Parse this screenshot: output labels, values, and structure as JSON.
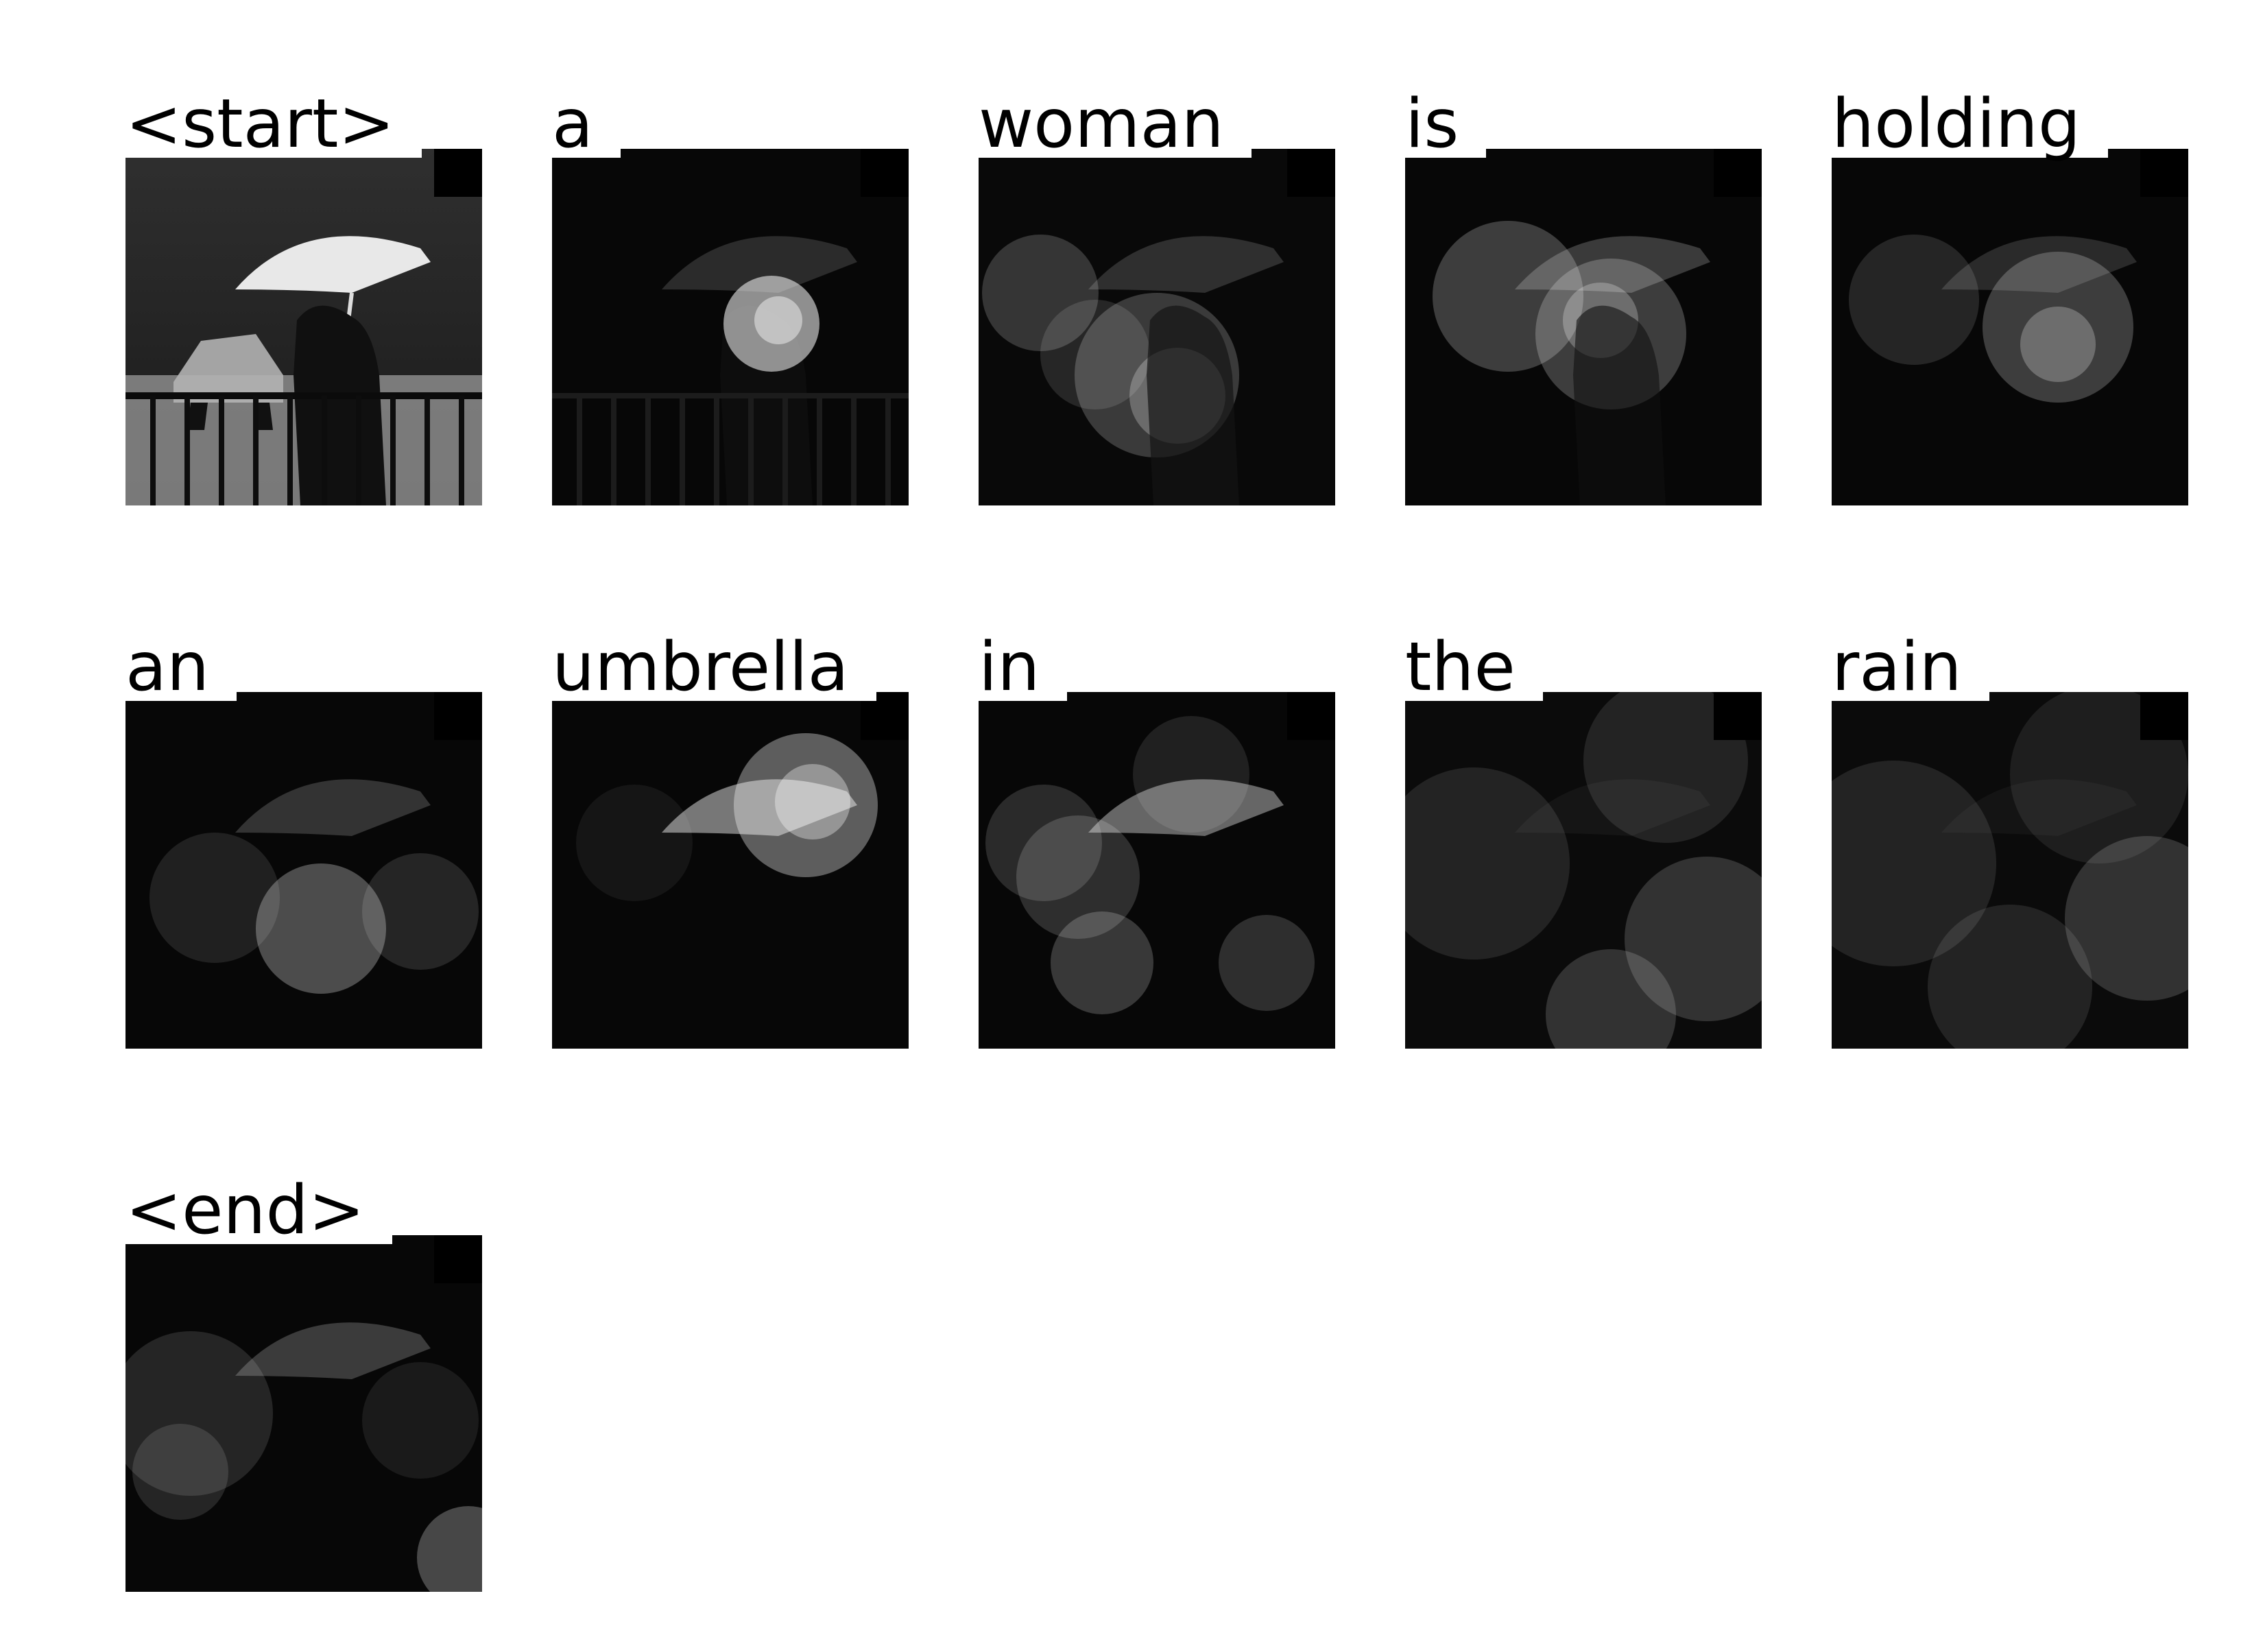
{
  "figure": {
    "tokens": [
      {
        "word": "<start>"
      },
      {
        "word": "a"
      },
      {
        "word": "woman"
      },
      {
        "word": "is"
      },
      {
        "word": "holding"
      },
      {
        "word": "an"
      },
      {
        "word": "umbrella"
      },
      {
        "word": "in"
      },
      {
        "word": "the"
      },
      {
        "word": "rain"
      },
      {
        "word": "<end>"
      }
    ]
  },
  "colors": {
    "background": "#ffffff",
    "text": "#000000",
    "umbrella": "#e8e8e8",
    "attention_highlight": "#ffffff"
  }
}
